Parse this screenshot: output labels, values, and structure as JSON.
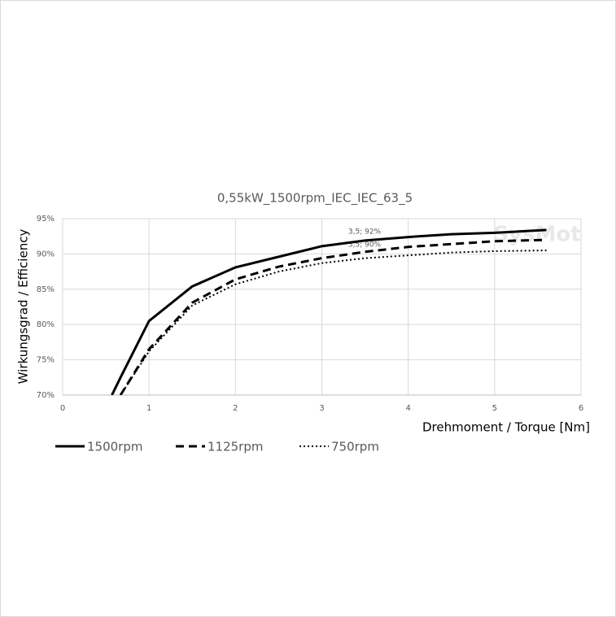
{
  "chart_data": {
    "type": "line",
    "title": "0,55kW_1500rpm_IEC_IEC_63_5",
    "x_label": "Drehmoment / Torque [Nm]",
    "y_label": "Wirkungsgrad / Efficiency",
    "watermark": "SysMot",
    "annotations": [
      "3,5; 92%",
      "3,5; 90%"
    ],
    "x": [
      0.57,
      0.67,
      1,
      1.5,
      2,
      2.5,
      3,
      3.5,
      4,
      4.5,
      5,
      5.6
    ],
    "series": [
      {
        "name": "1500rpm",
        "color": "#000000",
        "dash": "solid",
        "values": [
          70,
          72.5,
          80.5,
          85.4,
          88.1,
          89.6,
          91.1,
          91.9,
          92.4,
          92.8,
          93.0,
          93.4
        ]
      },
      {
        "name": "1125rpm",
        "color": "#000000",
        "dash": "dashed",
        "values": [
          null,
          70,
          76.5,
          83.1,
          86.4,
          88.2,
          89.4,
          90.3,
          91.0,
          91.4,
          91.8,
          92.0
        ]
      },
      {
        "name": "750rpm",
        "color": "#000000",
        "dash": "dotted",
        "values": [
          null,
          70,
          76.2,
          82.7,
          85.7,
          87.5,
          88.7,
          89.4,
          89.8,
          90.2,
          90.4,
          90.5
        ]
      }
    ],
    "xlim": [
      0,
      6
    ],
    "xticks": [
      0,
      1,
      2,
      3,
      4,
      5,
      6
    ],
    "ylim": [
      70,
      95
    ],
    "yticks": [
      {
        "value": 70,
        "label": "70%"
      },
      {
        "value": 75,
        "label": "75%"
      },
      {
        "value": 80,
        "label": "80%"
      },
      {
        "value": 85,
        "label": "85%"
      },
      {
        "value": 90,
        "label": "90%"
      },
      {
        "value": 95,
        "label": "95%"
      }
    ],
    "grid": true,
    "legend": "bottom-left"
  }
}
